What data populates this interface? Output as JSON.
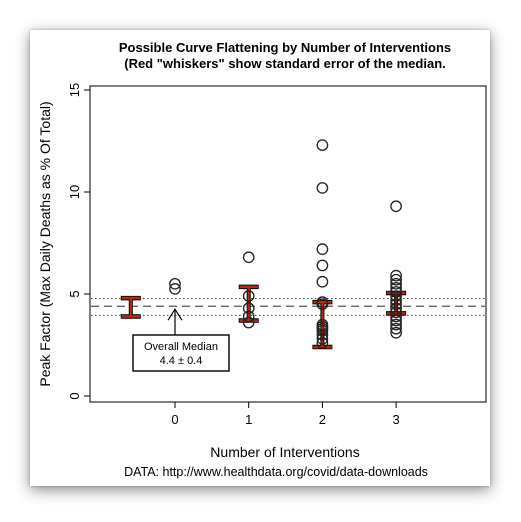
{
  "chart_data": {
    "type": "scatter",
    "title": "Possible Curve Flattening by Number of Interventions",
    "subtitle": "(Red \"whiskers\" show standard error of the median.",
    "xlabel": "Number of Interventions",
    "ylabel": "Peak Factor (Max Daily Deaths as % Of Total)",
    "source": "DATA: http://www.healthdata.org/covid/data-downloads",
    "x_ticks": [
      "0",
      "1",
      "2",
      "3"
    ],
    "y_ticks": [
      "0",
      "5",
      "10",
      "15"
    ],
    "xlim": [
      -1,
      4
    ],
    "ylim": [
      0,
      15
    ],
    "grid": false,
    "overall_median": 4.4,
    "overall_band": [
      3.95,
      4.78
    ],
    "annotation": {
      "line1": "Overall Median",
      "line2": "4.4 ± 0.4",
      "arrow_to": [
        0,
        4.4
      ]
    },
    "points": [
      {
        "x": 0,
        "values": [
          5.25,
          5.5
        ]
      },
      {
        "x": 1,
        "values": [
          6.8,
          4.9,
          4.3,
          3.9,
          3.6
        ]
      },
      {
        "x": 2,
        "values": [
          12.3,
          10.2,
          7.2,
          6.4,
          5.6,
          4.6,
          4.5,
          3.5,
          3.4,
          3.3,
          3.2,
          3.0,
          2.8,
          2.6
        ]
      },
      {
        "x": 3,
        "values": [
          9.3,
          5.9,
          5.7,
          5.5,
          5.3,
          5.1,
          4.9,
          4.7,
          4.5,
          4.3,
          4.1,
          3.9,
          3.7,
          3.5,
          3.3,
          3.1
        ]
      }
    ],
    "whiskers": [
      {
        "x": -0.6,
        "low": 3.9,
        "high": 4.8
      },
      {
        "x": 1,
        "low": 3.7,
        "high": 5.35
      },
      {
        "x": 2,
        "low": 2.4,
        "high": 4.6
      },
      {
        "x": 3,
        "low": 4.05,
        "high": 5.05
      }
    ],
    "colors": {
      "whisker": "#c0250e",
      "whisker_outline": "#000000",
      "points": "#222222",
      "axes": "#000000"
    }
  }
}
